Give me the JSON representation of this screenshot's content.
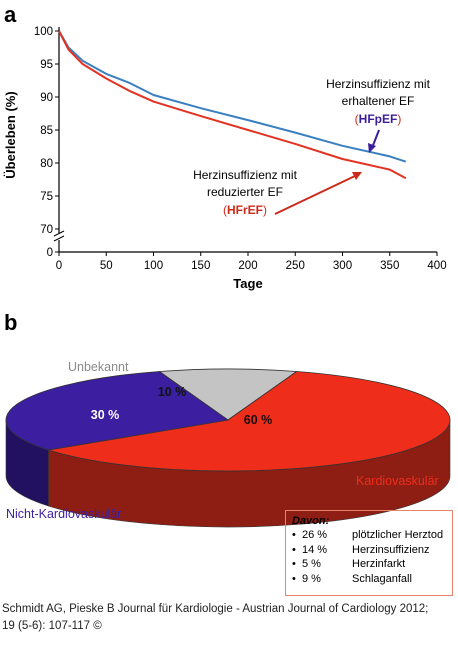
{
  "panel_a": {
    "label": "a"
  },
  "panel_b": {
    "label": "b"
  },
  "chart_data": [
    {
      "type": "line",
      "xlabel": "Tage",
      "ylabel": "Überleben (%)",
      "xlim": [
        0,
        400
      ],
      "ylim": [
        70,
        100
      ],
      "y_axis_break": true,
      "xticks": [
        "0",
        "50",
        "100",
        "150",
        "200",
        "250",
        "300",
        "350",
        "400"
      ],
      "yticks": [
        "0",
        "70",
        "75",
        "80",
        "85",
        "90",
        "95",
        "100"
      ],
      "x": [
        0,
        10,
        25,
        50,
        75,
        100,
        150,
        200,
        250,
        300,
        350,
        367
      ],
      "series": [
        {
          "name": "HFpEF",
          "annotation": {
            "line1": "Herzinsuffizienz mit",
            "line2": "erhaltener EF",
            "abbr": "HFpEF"
          },
          "color": "#3a7fc1",
          "values": [
            100,
            97.5,
            95.5,
            93.5,
            92.1,
            90.3,
            88.3,
            86.5,
            84.6,
            82.6,
            81.0,
            80.2
          ]
        },
        {
          "name": "HFrEF",
          "annotation": {
            "line1": "Herzinsuffizienz mit",
            "line2": "reduzierter  EF",
            "abbr": "HFrEF"
          },
          "color": "#e23222",
          "values": [
            100,
            97.2,
            95.0,
            92.8,
            90.9,
            89.3,
            87.1,
            85.0,
            82.9,
            80.6,
            79.0,
            77.7
          ]
        }
      ],
      "grid": false
    },
    {
      "type": "pie",
      "style": "3d",
      "slices": [
        {
          "label": "Kardiovaskulär",
          "value": 60,
          "text": "60 %",
          "color": "#ee2d1b"
        },
        {
          "label": "Unbekannt",
          "value": 10,
          "text": "10 %",
          "color": "#c4c4c4"
        },
        {
          "label": "Nicht-Kardiovaskulär",
          "value": 30,
          "text": "30 %",
          "color": "#3c1ea0"
        }
      ]
    }
  ],
  "label_colors": {
    "bracket": "#cc2a1a",
    "hfpef": "#3c1e9c",
    "hfref": "#cc2a1a",
    "kardio": "#ee2d1b",
    "nicht": "#3c1ea0",
    "unbekannt": "#8a8a8a"
  },
  "davon": {
    "title": "Davon:",
    "items": [
      {
        "bullet": "•",
        "pct": "26 %",
        "text": "plötzlicher Herztod"
      },
      {
        "bullet": "•",
        "pct": "14 %",
        "text": "Herzinsuffizienz"
      },
      {
        "bullet": "•",
        "pct": "5 %",
        "text": "Herzinfarkt"
      },
      {
        "bullet": "•",
        "pct": "9 %",
        "text": "Schlaganfall"
      }
    ]
  },
  "caption": {
    "line1": "Schmidt AG, Pieske B Journal für Kardiologie - Austrian Journal of Cardiology 2012;",
    "line2": "19 (5-6): 107-117 ©"
  }
}
